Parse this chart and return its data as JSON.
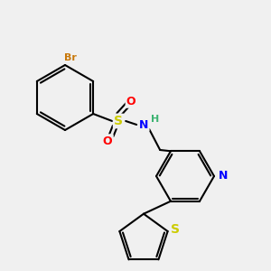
{
  "background_color": "#f0f0f0",
  "bond_color": "#000000",
  "bond_width": 1.5,
  "atom_colors": {
    "Br": "#c8780a",
    "S": "#cccc00",
    "O": "#ff0000",
    "N": "#0000ff",
    "H_color": "#3cb371"
  },
  "font_size": 9,
  "figsize": [
    3.0,
    3.0
  ],
  "dpi": 100
}
